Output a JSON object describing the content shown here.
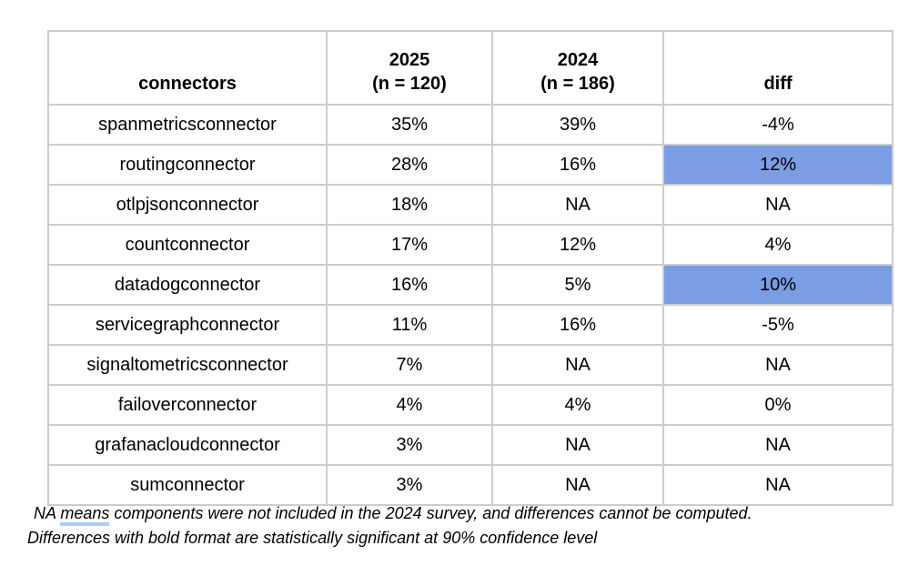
{
  "table": {
    "header": {
      "connectors": "connectors",
      "y2025_line1": "2025",
      "y2025_line2": "(n = 120)",
      "y2024_line1": "2024",
      "y2024_line2": "(n = 186)",
      "diff": "diff"
    },
    "rows": [
      {
        "connector": "spanmetricsconnector",
        "y2025": "35%",
        "y2024": "39%",
        "diff": "-4%",
        "highlight": false
      },
      {
        "connector": "routingconnector",
        "y2025": "28%",
        "y2024": "16%",
        "diff": "12%",
        "highlight": true
      },
      {
        "connector": "otlpjsonconnector",
        "y2025": "18%",
        "y2024": "NA",
        "diff": "NA",
        "highlight": false
      },
      {
        "connector": "countconnector",
        "y2025": "17%",
        "y2024": "12%",
        "diff": "4%",
        "highlight": false
      },
      {
        "connector": "datadogconnector",
        "y2025": "16%",
        "y2024": "5%",
        "diff": "10%",
        "highlight": true
      },
      {
        "connector": "servicegraphconnector",
        "y2025": "11%",
        "y2024": "16%",
        "diff": "-5%",
        "highlight": false
      },
      {
        "connector": "signaltometricsconnector",
        "y2025": "7%",
        "y2024": "NA",
        "diff": "NA",
        "highlight": false
      },
      {
        "connector": "failoverconnector",
        "y2025": "4%",
        "y2024": "4%",
        "diff": "0%",
        "highlight": false
      },
      {
        "connector": "grafanacloudconnector",
        "y2025": "3%",
        "y2024": "NA",
        "diff": "NA",
        "highlight": false
      },
      {
        "connector": "sumconnector",
        "y2025": "3%",
        "y2024": "NA",
        "diff": "NA",
        "highlight": false
      }
    ]
  },
  "footnotes": {
    "line1_prefix": "NA ",
    "line1_word_underlined": "means",
    "line1_suffix": " components were not included in the 2024 survey, and differences cannot be computed.",
    "line2": "Differences with bold format are statistically significant at 90% confidence level"
  },
  "colors": {
    "highlight_blue": "#7a9de3",
    "grid_gray": "#cccccc",
    "grammar_underline_blue": "#aecbfa",
    "text": "#000000",
    "background": "#ffffff"
  }
}
